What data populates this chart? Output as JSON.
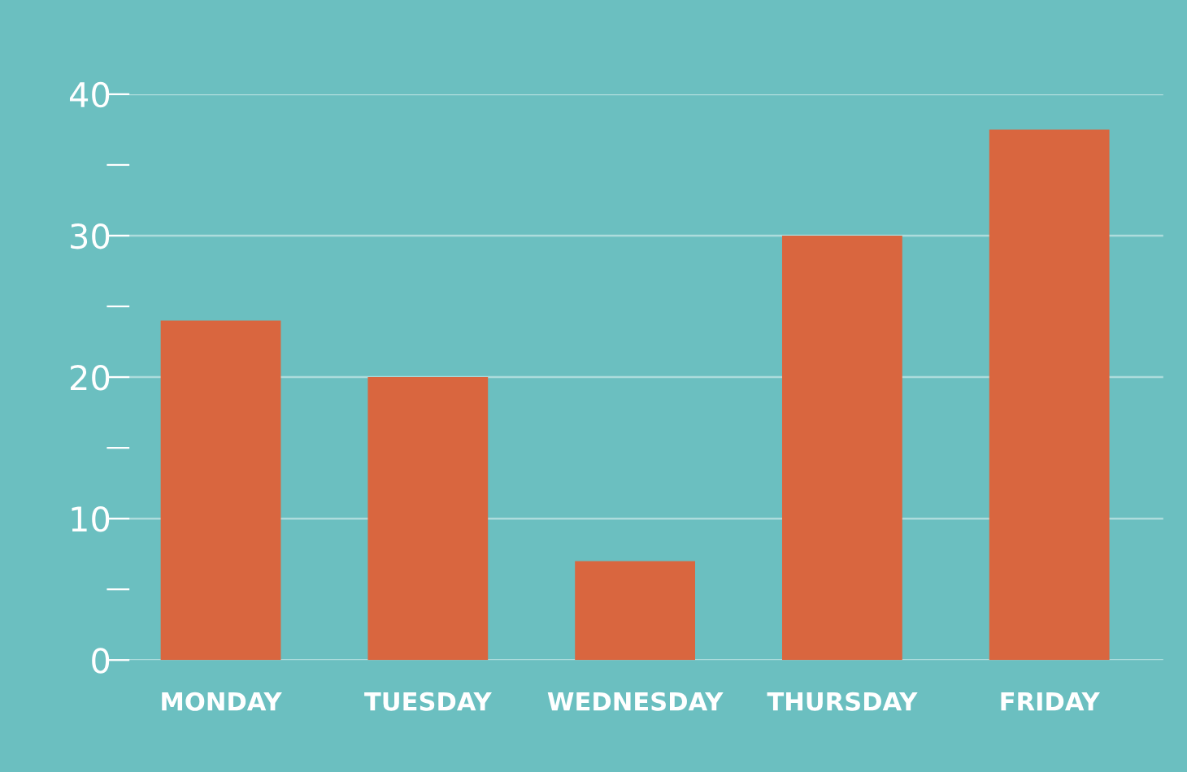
{
  "chart_data": {
    "type": "bar",
    "categories": [
      "MONDAY",
      "TUESDAY",
      "WEDNESDAY",
      "THURSDAY",
      "FRIDAY"
    ],
    "values": [
      24,
      20,
      7,
      30,
      37.5
    ],
    "color": "#d9663f",
    "ylim": [
      0,
      40
    ],
    "yticks": [
      0,
      {
        "value": 5,
        "label": null
      },
      10,
      {
        "value": 15,
        "label": null
      },
      20,
      {
        "value": 25,
        "label": null
      },
      30,
      {
        "value": 35,
        "label": null
      },
      40
    ],
    "grid": "y"
  }
}
